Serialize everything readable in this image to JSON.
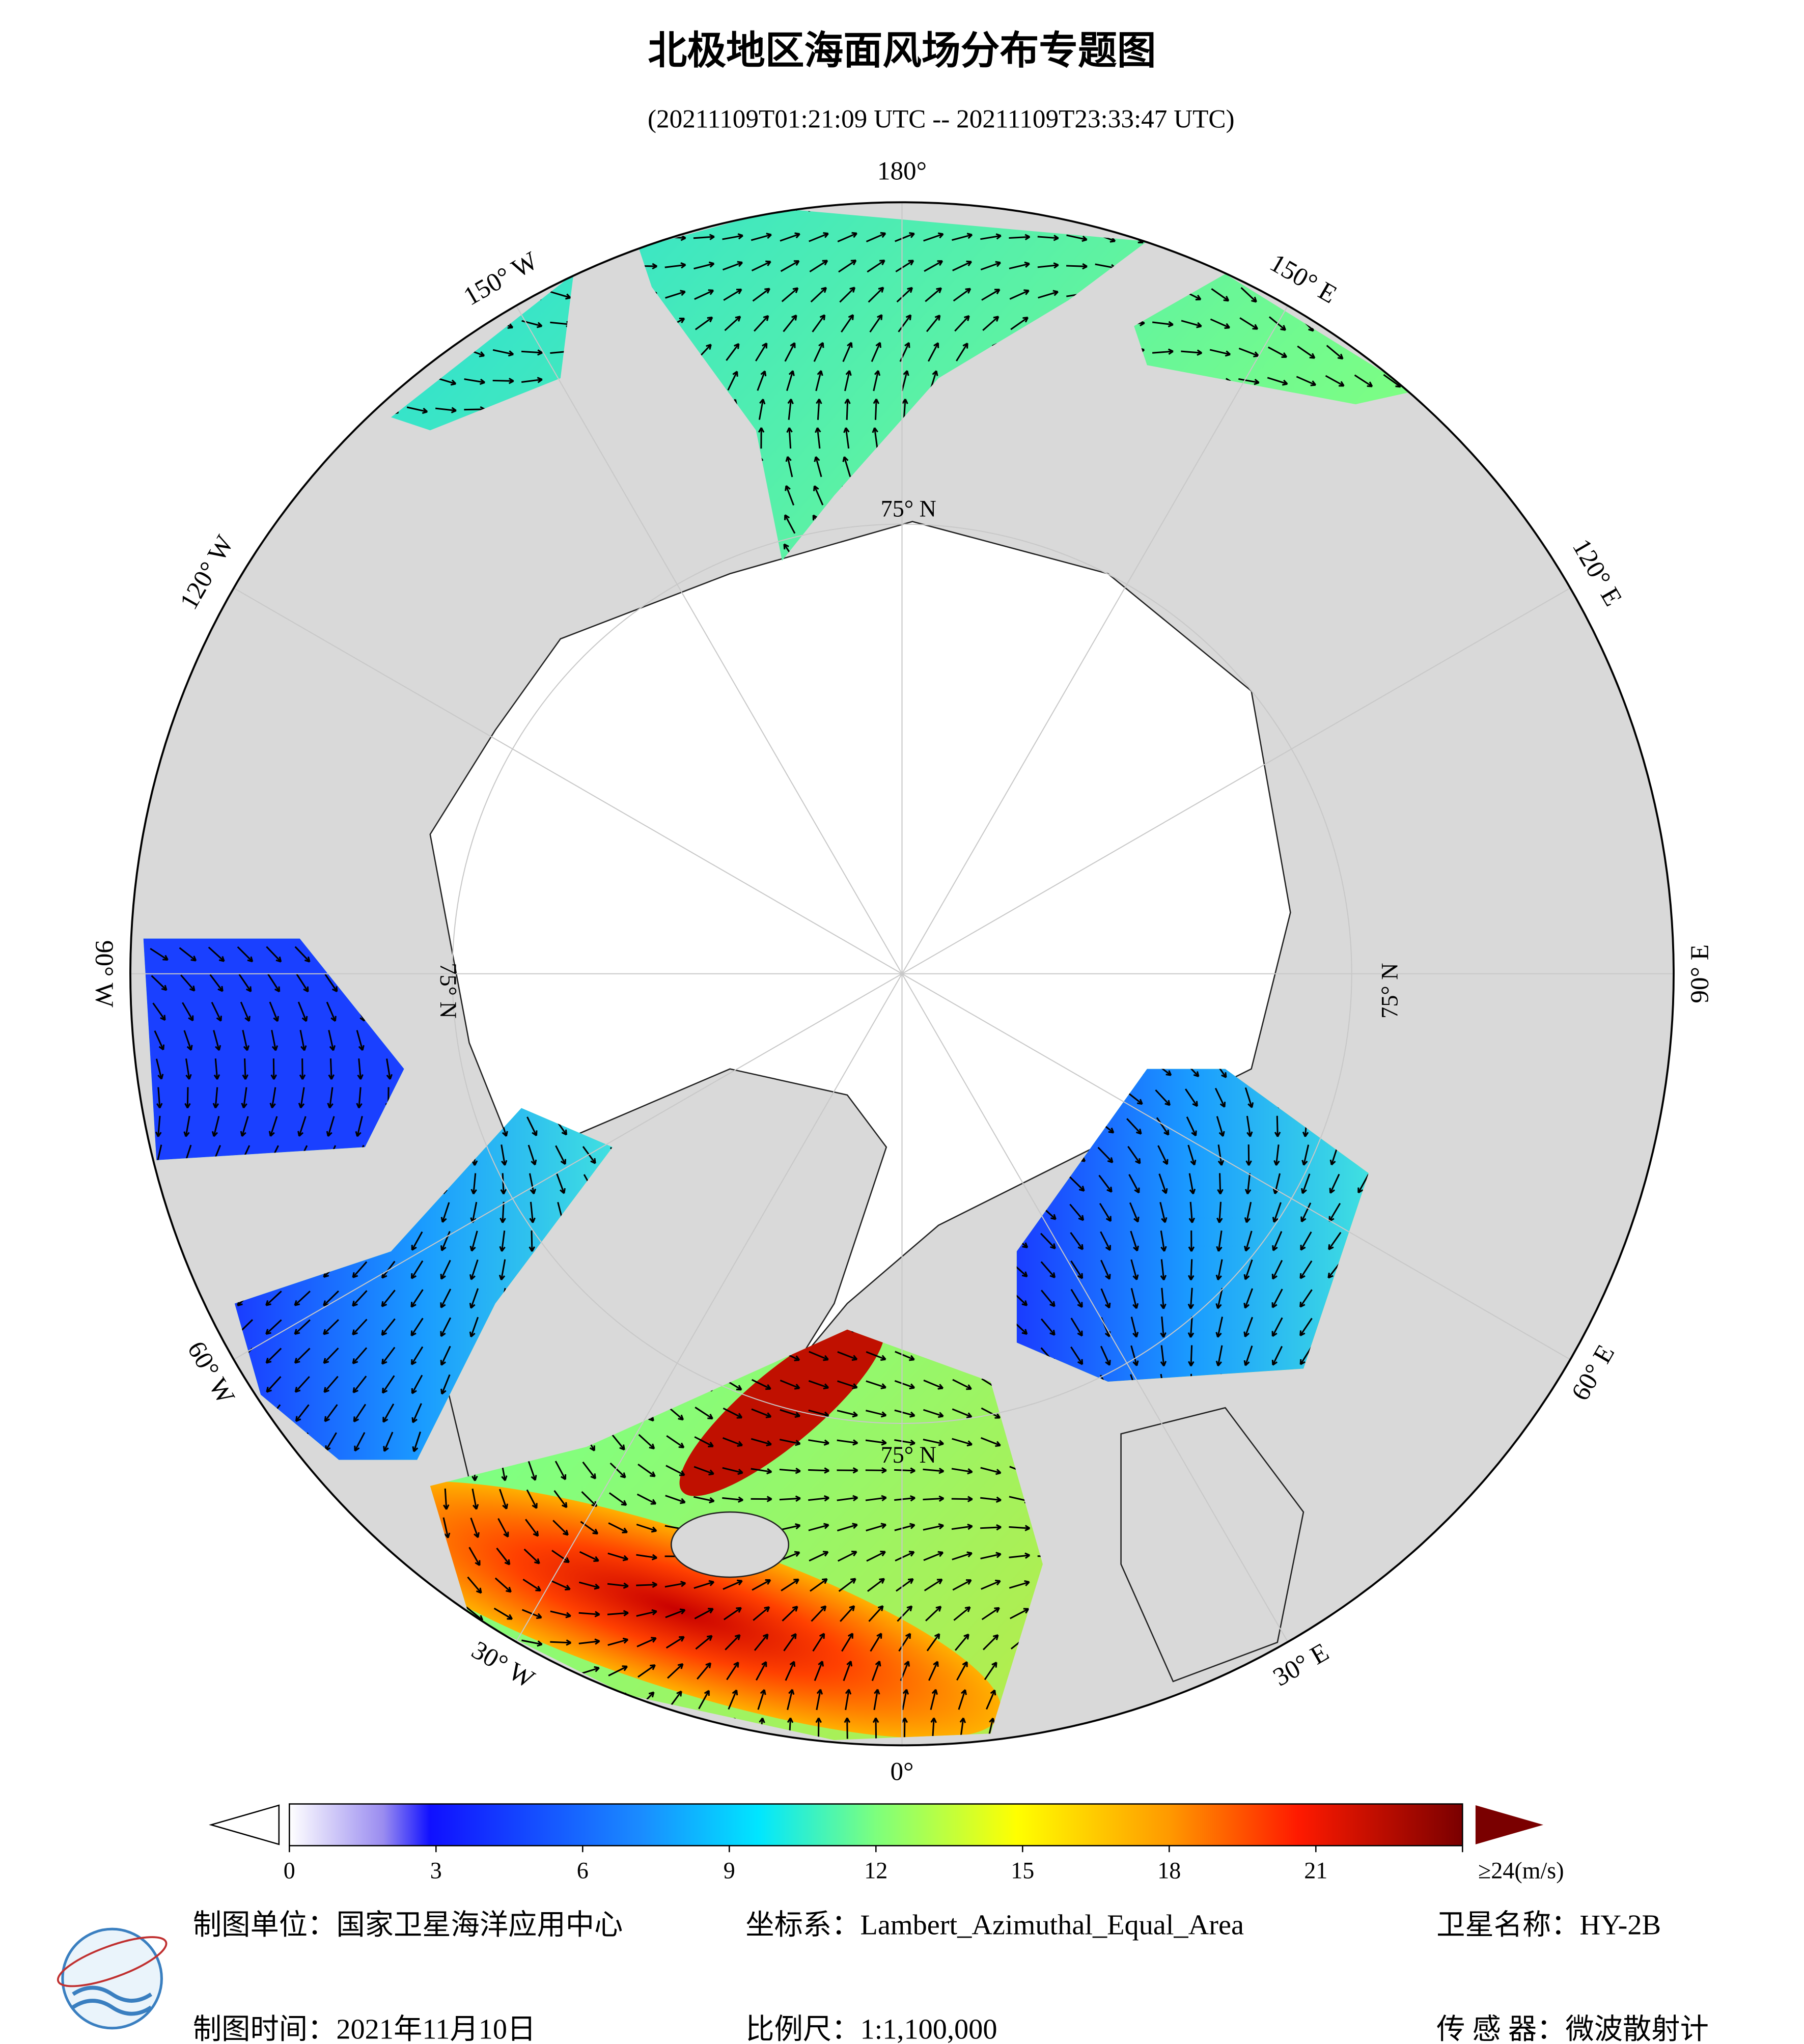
{
  "title": "北极地区海面风场分布专题图",
  "subtitle": "(20211109T01:21:09 UTC -- 20211109T23:33:47 UTC)",
  "map": {
    "lon_labels": [
      "0°",
      "30° E",
      "60° E",
      "90° E",
      "120° E",
      "150° E",
      "180°",
      "150° W",
      "120° W",
      "90° W",
      "60° W",
      "30° W"
    ],
    "lat_labels": [
      "75° N",
      "75° N",
      "75° N",
      "75° N"
    ]
  },
  "colorbar": {
    "lim": [
      0,
      24
    ],
    "ticks": [
      0,
      3,
      6,
      9,
      12,
      15,
      18,
      21,
      {
        "value": 24,
        "label": "≥24(m/s)"
      }
    ]
  },
  "footer": {
    "unit": "制图单位：国家卫星海洋应用中心",
    "projection": "坐标系：Lambert_Azimuthal_Equal_Area",
    "satellite": "卫星名称：HY-2B",
    "date": "制图时间：2021年11月10日",
    "scale": "比例尺：1:1,100,000",
    "sensor": "传 感 器：微波散射计"
  }
}
